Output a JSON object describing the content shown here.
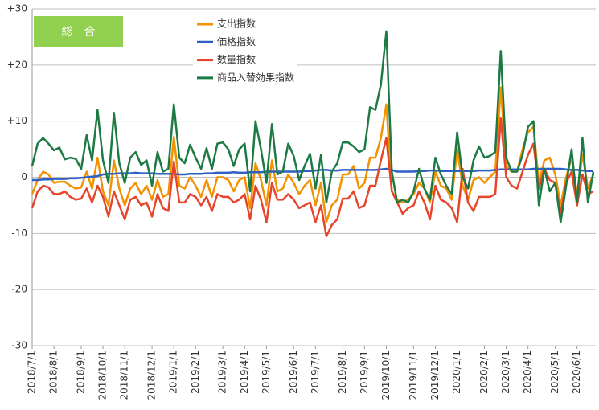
{
  "chart_data": {
    "type": "line",
    "title": "総　合",
    "categories": [
      "2018/7/1",
      null,
      null,
      null,
      "2018/8/1",
      null,
      null,
      null,
      null,
      "2018/9/1",
      null,
      null,
      null,
      "2018/10/1",
      null,
      null,
      null,
      "2018/11/1",
      null,
      null,
      null,
      null,
      "2018/12/1",
      null,
      null,
      null,
      "2019/1/1",
      null,
      null,
      null,
      "2019/2/1",
      null,
      null,
      null,
      null,
      "2019/3/1",
      null,
      null,
      null,
      "2019/4/1",
      null,
      null,
      null,
      "2019/5/1",
      null,
      null,
      null,
      null,
      "2019/6/1",
      null,
      null,
      null,
      "2019/7/1",
      null,
      null,
      null,
      null,
      "2019/8/1",
      null,
      null,
      null,
      "2019/9/1",
      null,
      null,
      null,
      "2019/10/1",
      null,
      null,
      null,
      null,
      "2019/11/1",
      null,
      null,
      null,
      "2019/12/1",
      null,
      null,
      null,
      "2020/1/1",
      null,
      null,
      null,
      null,
      "2020/2/1",
      null,
      null,
      null,
      "2020/3/1",
      null,
      null,
      null,
      "2020/4/1",
      null,
      null,
      null,
      null,
      "2020/5/1",
      null,
      null,
      null,
      "2020/6/1",
      null,
      null,
      null
    ],
    "series": [
      {
        "name": "支出指数",
        "color": "#f39200",
        "values": [
          -3,
          -0.5,
          1,
          0.5,
          -1,
          -0.8,
          -0.8,
          -1.5,
          -2,
          -1.8,
          1,
          -2,
          3.5,
          -2.5,
          -5,
          3,
          -2,
          -5,
          -2,
          -1,
          -3,
          -1.5,
          -4,
          -0.5,
          -3.5,
          -3,
          7.2,
          -1.5,
          -2,
          0,
          -1.5,
          -3.5,
          -0.5,
          -3.5,
          0,
          0,
          -0.5,
          -2.5,
          -0.5,
          0,
          -5.5,
          2.5,
          -0.5,
          -5,
          3,
          -2.5,
          -2,
          0.5,
          -1,
          -3,
          -1.5,
          -0.5,
          -5,
          -1,
          -8,
          -5,
          -4,
          0.5,
          0.5,
          2,
          -2,
          -1,
          3.5,
          3.5,
          7,
          13,
          -2.5,
          -4,
          -4.5,
          -4,
          -3,
          -1,
          -2,
          -4.5,
          1,
          -1.5,
          -2,
          -4,
          5,
          -1.5,
          -4,
          -0.5,
          0,
          -1,
          0,
          1,
          16,
          2,
          1,
          1,
          5,
          8,
          9,
          -1,
          3,
          3.5,
          0.5,
          -5,
          0,
          3.5,
          -3,
          4,
          -2,
          0.5
        ]
      },
      {
        "name": "価格指数",
        "color": "#2d5fc4",
        "values": [
          -0.5,
          -0.5,
          -0.4,
          -0.4,
          -0.3,
          -0.3,
          -0.3,
          -0.2,
          -0.2,
          -0.1,
          0,
          0.1,
          0.2,
          0.5,
          0.6,
          0.6,
          0.7,
          0.7,
          0.7,
          0.8,
          0.7,
          0.7,
          0.7,
          0.6,
          0.6,
          0.6,
          0.6,
          0.5,
          0.5,
          0.6,
          0.6,
          0.6,
          0.7,
          0.7,
          0.8,
          0.8,
          0.8,
          0.9,
          0.8,
          0.8,
          0.9,
          0.9,
          0.9,
          1,
          1,
          1,
          1,
          1,
          1,
          1,
          1.1,
          1.1,
          1.2,
          1.3,
          1.3,
          1.2,
          1.2,
          1.3,
          1.3,
          1.3,
          1.3,
          1.3,
          1.3,
          1.3,
          1.4,
          1.5,
          1.3,
          1,
          1,
          1,
          1,
          1.1,
          1.1,
          1.2,
          1.2,
          1.1,
          1.1,
          1.1,
          1.1,
          1.1,
          1.1,
          1.1,
          1.2,
          1.2,
          1.2,
          1.3,
          1.4,
          1.4,
          1.4,
          1.4,
          1.4,
          1.4,
          1.5,
          1.5,
          1.5,
          1.5,
          1.5,
          1.5,
          1.4,
          1.3,
          1.3,
          1.2,
          1.1,
          1.1
        ]
      },
      {
        "name": "数量指数",
        "color": "#e6452b",
        "values": [
          -5.5,
          -2.5,
          -1.5,
          -1.8,
          -3,
          -3,
          -2.5,
          -3.5,
          -4,
          -3.8,
          -2,
          -4.5,
          -1.5,
          -3.5,
          -7,
          -2.5,
          -5,
          -7.5,
          -4,
          -3.5,
          -5,
          -4.5,
          -7,
          -3,
          -5.5,
          -6,
          2.8,
          -4.5,
          -4.5,
          -3,
          -3.5,
          -5,
          -3.5,
          -6,
          -3,
          -3.5,
          -3.5,
          -4.5,
          -4,
          -3,
          -7.5,
          -1.5,
          -4,
          -8,
          -1,
          -4,
          -4,
          -3,
          -4,
          -5.5,
          -5,
          -4.5,
          -8,
          -5,
          -10.5,
          -8.5,
          -7.5,
          -3.8,
          -3.8,
          -2.5,
          -5.5,
          -5,
          -1.5,
          -1.5,
          3,
          7,
          -2.5,
          -4.5,
          -6.5,
          -5.5,
          -5,
          -2.5,
          -4.5,
          -7.5,
          -1.5,
          -4,
          -4.5,
          -5.5,
          -8,
          1.5,
          -4.5,
          -6,
          -3.5,
          -3.5,
          -3.5,
          -3,
          10.5,
          0,
          -1.5,
          -2,
          1,
          4,
          6,
          -2,
          1.5,
          -0.5,
          -1,
          -6.5,
          -1,
          1,
          -5,
          0.5,
          -3,
          -2.5
        ]
      },
      {
        "name": "商品入替効果指数",
        "color": "#1e7a45",
        "values": [
          2,
          6,
          7,
          6,
          4.8,
          5.3,
          3.2,
          3.5,
          3.3,
          1.5,
          7.5,
          3,
          12,
          3,
          -1,
          11.5,
          2.5,
          -1,
          3.5,
          4.5,
          2.2,
          3,
          -1.5,
          4.5,
          1,
          1.5,
          13,
          3.5,
          2.5,
          5.8,
          3.5,
          1.5,
          5.2,
          1.5,
          6,
          6.2,
          5,
          2,
          5,
          6,
          -2.5,
          10,
          5,
          -1,
          9.5,
          0.5,
          1,
          6,
          3.8,
          -0.5,
          2,
          4.2,
          -2,
          4,
          -4.5,
          1,
          2.5,
          6.2,
          6.2,
          5.5,
          4.5,
          5,
          12.5,
          12,
          16.5,
          26,
          1,
          -4.5,
          -4,
          -4.5,
          -2.5,
          1.5,
          -2,
          -4,
          3.5,
          0.5,
          -1.5,
          -3,
          8,
          0,
          -2,
          3,
          5.5,
          3.5,
          3.8,
          4.5,
          22.5,
          3.5,
          1,
          1,
          4,
          9,
          10,
          -5,
          1.5,
          -2.5,
          -1,
          -8,
          -1.5,
          5,
          -4.5,
          7,
          -4.5,
          1
        ]
      }
    ],
    "ylim": [
      -30,
      30
    ],
    "yticks": [
      {
        "value": 30,
        "label": "+30"
      },
      {
        "value": 20,
        "label": "+20"
      },
      {
        "value": 10,
        "label": "+10"
      },
      0,
      -10,
      -20,
      -30
    ],
    "grid": true
  }
}
